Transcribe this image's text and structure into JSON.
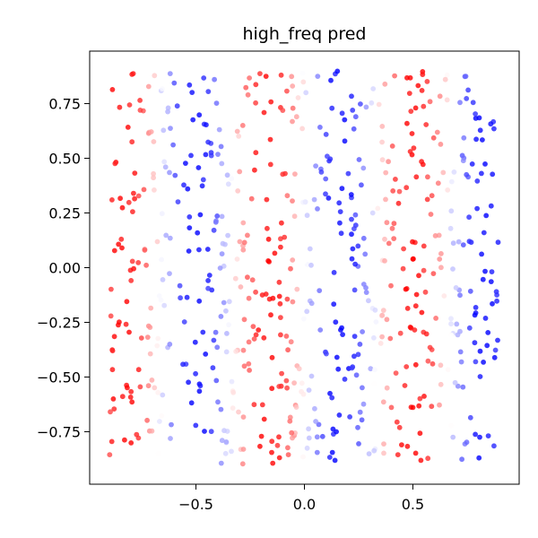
{
  "chart_data": {
    "type": "scatter",
    "title": "high_freq pred",
    "xlabel": "",
    "ylabel": "",
    "xlim": [
      -0.99,
      0.99
    ],
    "ylim": [
      -0.99,
      0.99
    ],
    "x_ticks": [
      -0.5,
      0.0,
      0.5
    ],
    "x_tick_labels": [
      "−0.5",
      "0.0",
      "0.5"
    ],
    "y_ticks": [
      0.75,
      0.5,
      0.25,
      0.0,
      -0.25,
      -0.5,
      -0.75
    ],
    "y_tick_labels": [
      "0.75",
      "0.50",
      "0.25",
      "0.00",
      "−0.25",
      "−0.50",
      "−0.75"
    ],
    "grid": false,
    "colormap": "bwr",
    "colors": {
      "negative": "#0000ff",
      "neutral": "#ffffff",
      "positive": "#ff0000"
    },
    "point_count": 700,
    "x_range": [
      -0.9,
      0.9
    ],
    "y_range": [
      -0.9,
      0.9
    ],
    "color_pattern": "pred = sin(3πx): alternating vertical bands of blue and red across x",
    "band_centers": [
      {
        "x": -0.83,
        "color": "blue"
      },
      {
        "x": -0.5,
        "color": "red"
      },
      {
        "x": -0.17,
        "color": "blue"
      },
      {
        "x": 0.17,
        "color": "red"
      },
      {
        "x": 0.5,
        "color": "blue"
      },
      {
        "x": 0.83,
        "color": "red"
      }
    ],
    "series": [
      {
        "points": []
      }
    ]
  }
}
